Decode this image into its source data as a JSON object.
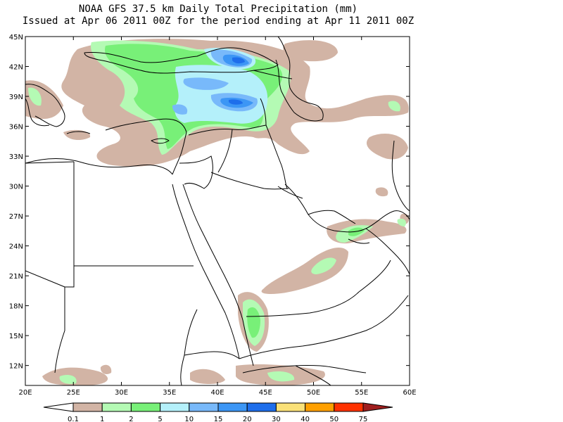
{
  "header": {
    "title": "NOAA GFS 37.5 km Daily Total Precipitation (mm)",
    "subtitle": "Issued at Apr 06 2011 00Z for the period ending at Apr 11 2011 00Z"
  },
  "map": {
    "lon_range": [
      20,
      60
    ],
    "lat_range": [
      10,
      45
    ],
    "lat_ticks": [
      "45N",
      "42N",
      "39N",
      "36N",
      "33N",
      "30N",
      "27N",
      "24N",
      "21N",
      "18N",
      "15N",
      "12N"
    ],
    "lon_ticks": [
      "20E",
      "25E",
      "30E",
      "35E",
      "40E",
      "45E",
      "50E",
      "55E",
      "60E"
    ]
  },
  "legend": {
    "labels": [
      "0.1",
      "1",
      "2",
      "5",
      "10",
      "15",
      "20",
      "30",
      "40",
      "50",
      "75"
    ],
    "colors": [
      "#ffffff",
      "#d2b4a5",
      "#b4fab4",
      "#78f078",
      "#b4f0fa",
      "#78b9fa",
      "#3c96f5",
      "#1e6eeb",
      "#fae178",
      "#ffa000",
      "#ff3200",
      "#a01e1e"
    ]
  },
  "precip_colors": {
    "tan": "#d2b4a5",
    "lightgreen": "#b4fab4",
    "green": "#78f078",
    "cyan": "#b4f0fa",
    "lightblue": "#78b9fa",
    "blue": "#3c96f5",
    "darkblue": "#1e6eeb"
  }
}
